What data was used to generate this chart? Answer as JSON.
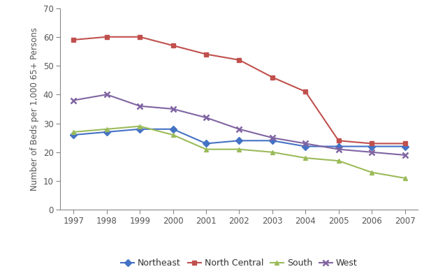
{
  "years": [
    1997,
    1998,
    1999,
    2000,
    2001,
    2002,
    2003,
    2004,
    2005,
    2006,
    2007
  ],
  "Northeast": [
    26,
    27,
    28,
    28,
    23,
    24,
    24,
    22,
    22,
    22,
    22
  ],
  "North_Central": [
    59,
    60,
    60,
    57,
    54,
    52,
    46,
    41,
    24,
    23,
    23
  ],
  "South": [
    27,
    28,
    29,
    26,
    21,
    21,
    20,
    18,
    17,
    13,
    11
  ],
  "West": [
    38,
    40,
    36,
    35,
    32,
    28,
    25,
    23,
    21,
    20,
    19
  ],
  "Northeast_color": "#4472C4",
  "North_Central_color": "#C0504D",
  "South_color": "#9BBB59",
  "West_color": "#8064A2",
  "Northeast_marker": "D",
  "North_Central_marker": "s",
  "South_marker": "^",
  "West_marker": "x",
  "ylabel": "Number of Beds per 1,000 65+ Persons",
  "ylim": [
    0,
    70
  ],
  "yticks": [
    0,
    10,
    20,
    30,
    40,
    50,
    60,
    70
  ],
  "legend_labels": [
    "Northeast",
    "North Central",
    "South",
    "West"
  ],
  "background_color": "#ffffff",
  "linewidth": 1.5,
  "markersize": 5,
  "tick_color": "#555555",
  "spine_color": "#888888"
}
